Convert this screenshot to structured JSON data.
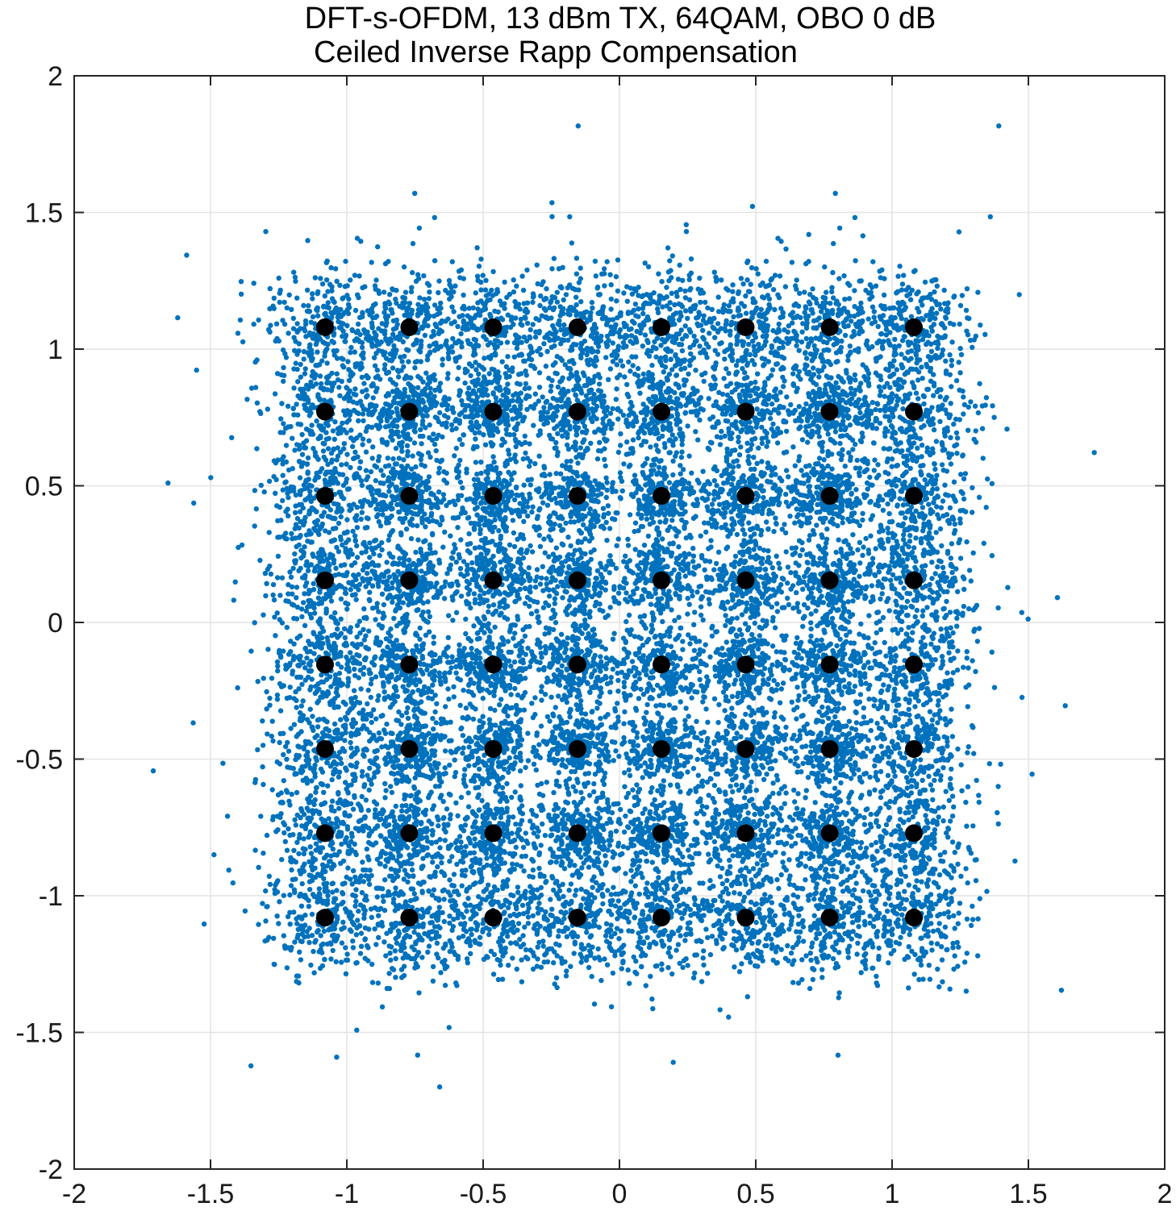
{
  "chart_data": {
    "type": "scatter",
    "title": "DFT-s-OFDM, 13 dBm TX, 64QAM, OBO 0 dB",
    "subtitle": "Ceiled Inverse Rapp Compensation",
    "xlabel": "",
    "ylabel": "",
    "xlim": [
      -2,
      2
    ],
    "ylim": [
      -2,
      2
    ],
    "xticks": [
      "-2",
      "-1.5",
      "-1",
      "-0.5",
      "0",
      "0.5",
      "1",
      "1.5",
      "2"
    ],
    "yticks": [
      "2",
      "1.5",
      "1",
      "0.5",
      "0",
      "-0.5",
      "-1",
      "-1.5",
      "-2"
    ],
    "xtick_values": [
      -2,
      -1.5,
      -1,
      -0.5,
      0,
      0.5,
      1,
      1.5,
      2
    ],
    "ytick_values": [
      2,
      1.5,
      1,
      0.5,
      0,
      -0.5,
      -1,
      -1.5,
      -2
    ],
    "grid": true,
    "series": [
      {
        "marker": "dot",
        "color": "#0072BD",
        "description_points": "received symbols scattered around each ideal constellation point",
        "spread_std": 0.075
      },
      {
        "marker": "filled-circle",
        "color": "#000000",
        "levels": [
          -1.08,
          -0.771,
          -0.463,
          -0.154,
          0.154,
          0.463,
          0.771,
          1.08
        ]
      }
    ]
  }
}
